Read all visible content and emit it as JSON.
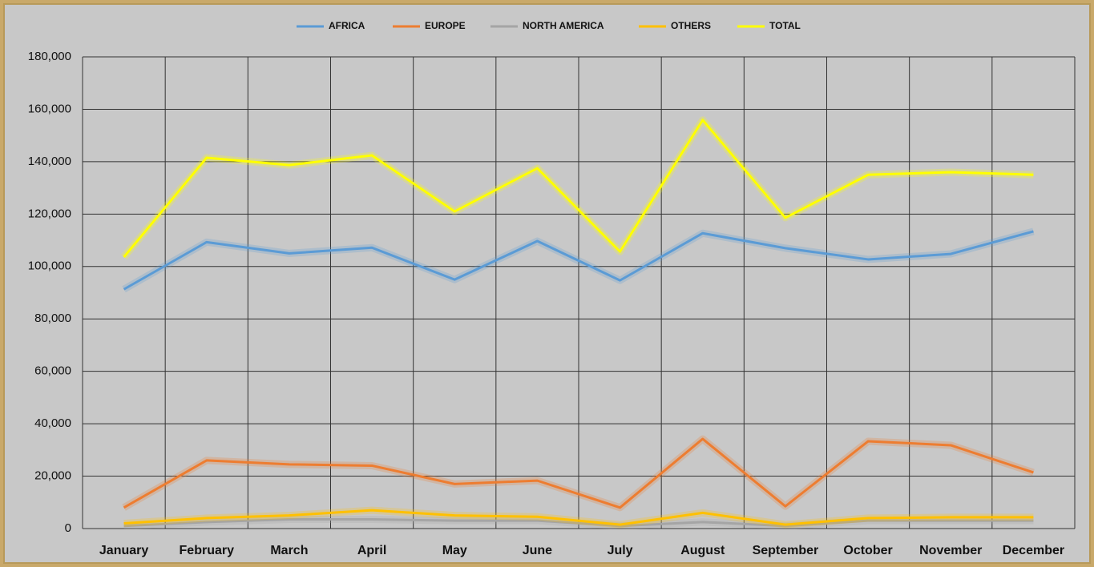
{
  "chart_data": {
    "type": "line",
    "categories": [
      "January",
      "February",
      "March",
      "April",
      "May",
      "June",
      "July",
      "August",
      "September",
      "October",
      "November",
      "December"
    ],
    "series": [
      {
        "name": "AFRICA",
        "color": "#5b9bd5",
        "values": [
          91300,
          109300,
          105000,
          107200,
          95000,
          109700,
          94700,
          112700,
          107000,
          102700,
          104800,
          113400
        ]
      },
      {
        "name": "EUROPE",
        "color": "#ed7d31",
        "values": [
          8000,
          26000,
          24500,
          24000,
          17000,
          18300,
          8000,
          34200,
          8500,
          33300,
          31800,
          21400
        ]
      },
      {
        "name": "NORTH AMERICA",
        "color": "#a5a5a5",
        "values": [
          1000,
          2500,
          3500,
          3500,
          3000,
          3000,
          1000,
          2500,
          1000,
          3000,
          3000,
          3000
        ]
      },
      {
        "name": "OTHERS",
        "color": "#ffc000",
        "values": [
          2000,
          4000,
          5000,
          7000,
          5000,
          4500,
          1500,
          6000,
          1500,
          4000,
          4300,
          4300
        ]
      },
      {
        "name": "TOTAL",
        "color": "#ffff00",
        "values": [
          103600,
          141500,
          138700,
          142400,
          121000,
          137500,
          105700,
          155900,
          118600,
          135000,
          136000,
          135000
        ]
      }
    ],
    "ylim": [
      0,
      180000
    ],
    "yticks": [
      0,
      {
        "value": 20000,
        "label": "20,000"
      },
      {
        "value": 40000,
        "label": "40,000"
      },
      {
        "value": 60000,
        "label": "60,000"
      },
      {
        "value": 80000,
        "label": "80,000"
      },
      {
        "value": 100000,
        "label": "100,000"
      },
      {
        "value": 120000,
        "label": "120,000"
      },
      {
        "value": 140000,
        "label": "140,000"
      },
      {
        "value": 160000,
        "label": "160,000"
      },
      {
        "value": 180000,
        "label": "180,000"
      }
    ],
    "grid": true,
    "legend": "top"
  }
}
